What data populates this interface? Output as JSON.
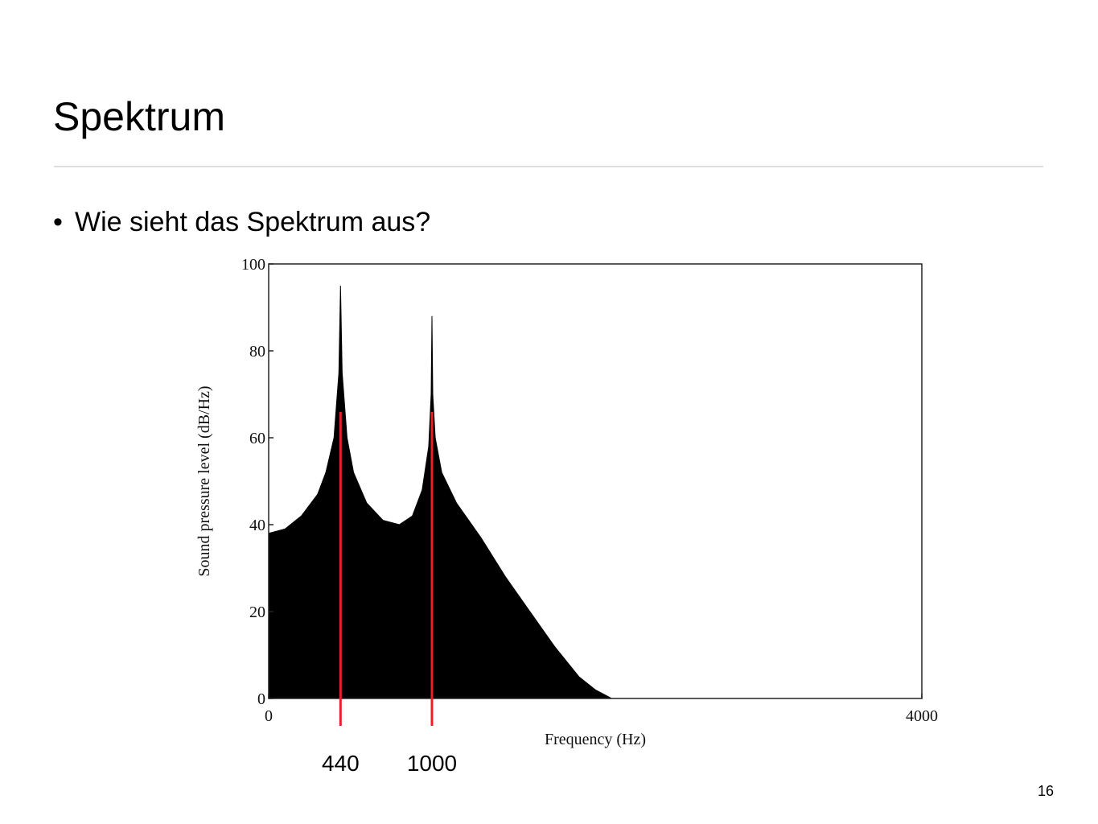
{
  "slide": {
    "title": "Spektrum",
    "bullet": "Wie sieht das Spektrum aus?",
    "page_number": "16"
  },
  "chart_data": {
    "type": "area",
    "x_label": "Frequency (Hz)",
    "y_label": "Sound pressure level (dB/Hz)",
    "x": [
      0,
      100,
      200,
      300,
      350,
      400,
      430,
      440,
      450,
      480,
      520,
      600,
      700,
      800,
      880,
      940,
      980,
      995,
      1000,
      1005,
      1020,
      1060,
      1150,
      1300,
      1450,
      1600,
      1750,
      1900,
      2000,
      2100,
      4000
    ],
    "values": [
      38,
      39,
      42,
      47,
      52,
      60,
      75,
      95,
      75,
      60,
      52,
      45,
      41,
      40,
      42,
      48,
      58,
      70,
      88,
      70,
      60,
      52,
      45,
      37,
      28,
      20,
      12,
      5,
      2,
      0,
      0
    ],
    "color": "#000000",
    "xlim": [
      0,
      4000
    ],
    "xticks": [
      0,
      4000
    ],
    "ylim": [
      0,
      100
    ],
    "yticks": [
      0,
      20,
      40,
      60,
      80,
      100
    ],
    "markers": [
      440,
      1000
    ],
    "marker_color": "#e8202a"
  }
}
